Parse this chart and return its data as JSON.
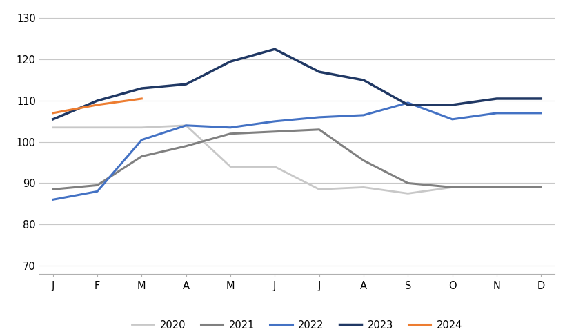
{
  "months": [
    "J",
    "F",
    "M",
    "A",
    "M",
    "J",
    "J",
    "A",
    "S",
    "O",
    "N",
    "D"
  ],
  "series": {
    "2020": [
      103.5,
      103.5,
      103.5,
      104.0,
      94.0,
      94.0,
      88.5,
      89.0,
      87.5,
      89.0,
      89.0,
      null
    ],
    "2021": [
      88.5,
      89.5,
      96.5,
      99.0,
      102.0,
      102.5,
      103.0,
      95.5,
      90.0,
      89.0,
      89.0,
      89.0
    ],
    "2022": [
      86.0,
      88.0,
      100.5,
      104.0,
      103.5,
      105.0,
      106.0,
      106.5,
      109.5,
      105.5,
      107.0,
      107.0
    ],
    "2023": [
      105.5,
      110.0,
      113.0,
      114.0,
      119.5,
      122.5,
      117.0,
      115.0,
      109.0,
      109.0,
      110.5,
      110.5
    ],
    "2024": [
      107.0,
      109.0,
      110.5,
      null,
      null,
      null,
      null,
      null,
      null,
      null,
      null,
      null
    ]
  },
  "series_order": [
    "2020",
    "2021",
    "2022",
    "2023",
    "2024"
  ],
  "colors": {
    "2020": "#c8c8c8",
    "2021": "#808080",
    "2022": "#4472c4",
    "2023": "#203864",
    "2024": "#ed7d31"
  },
  "linewidths": {
    "2020": 2.0,
    "2021": 2.2,
    "2022": 2.2,
    "2023": 2.5,
    "2024": 2.2
  },
  "ylim": [
    68,
    132
  ],
  "yticks": [
    70,
    80,
    90,
    100,
    110,
    120,
    130
  ],
  "background_color": "#ffffff",
  "grid_color": "#c8c8c8",
  "legend_labels": [
    "2020",
    "2021",
    "2022",
    "2023",
    "2024"
  ]
}
